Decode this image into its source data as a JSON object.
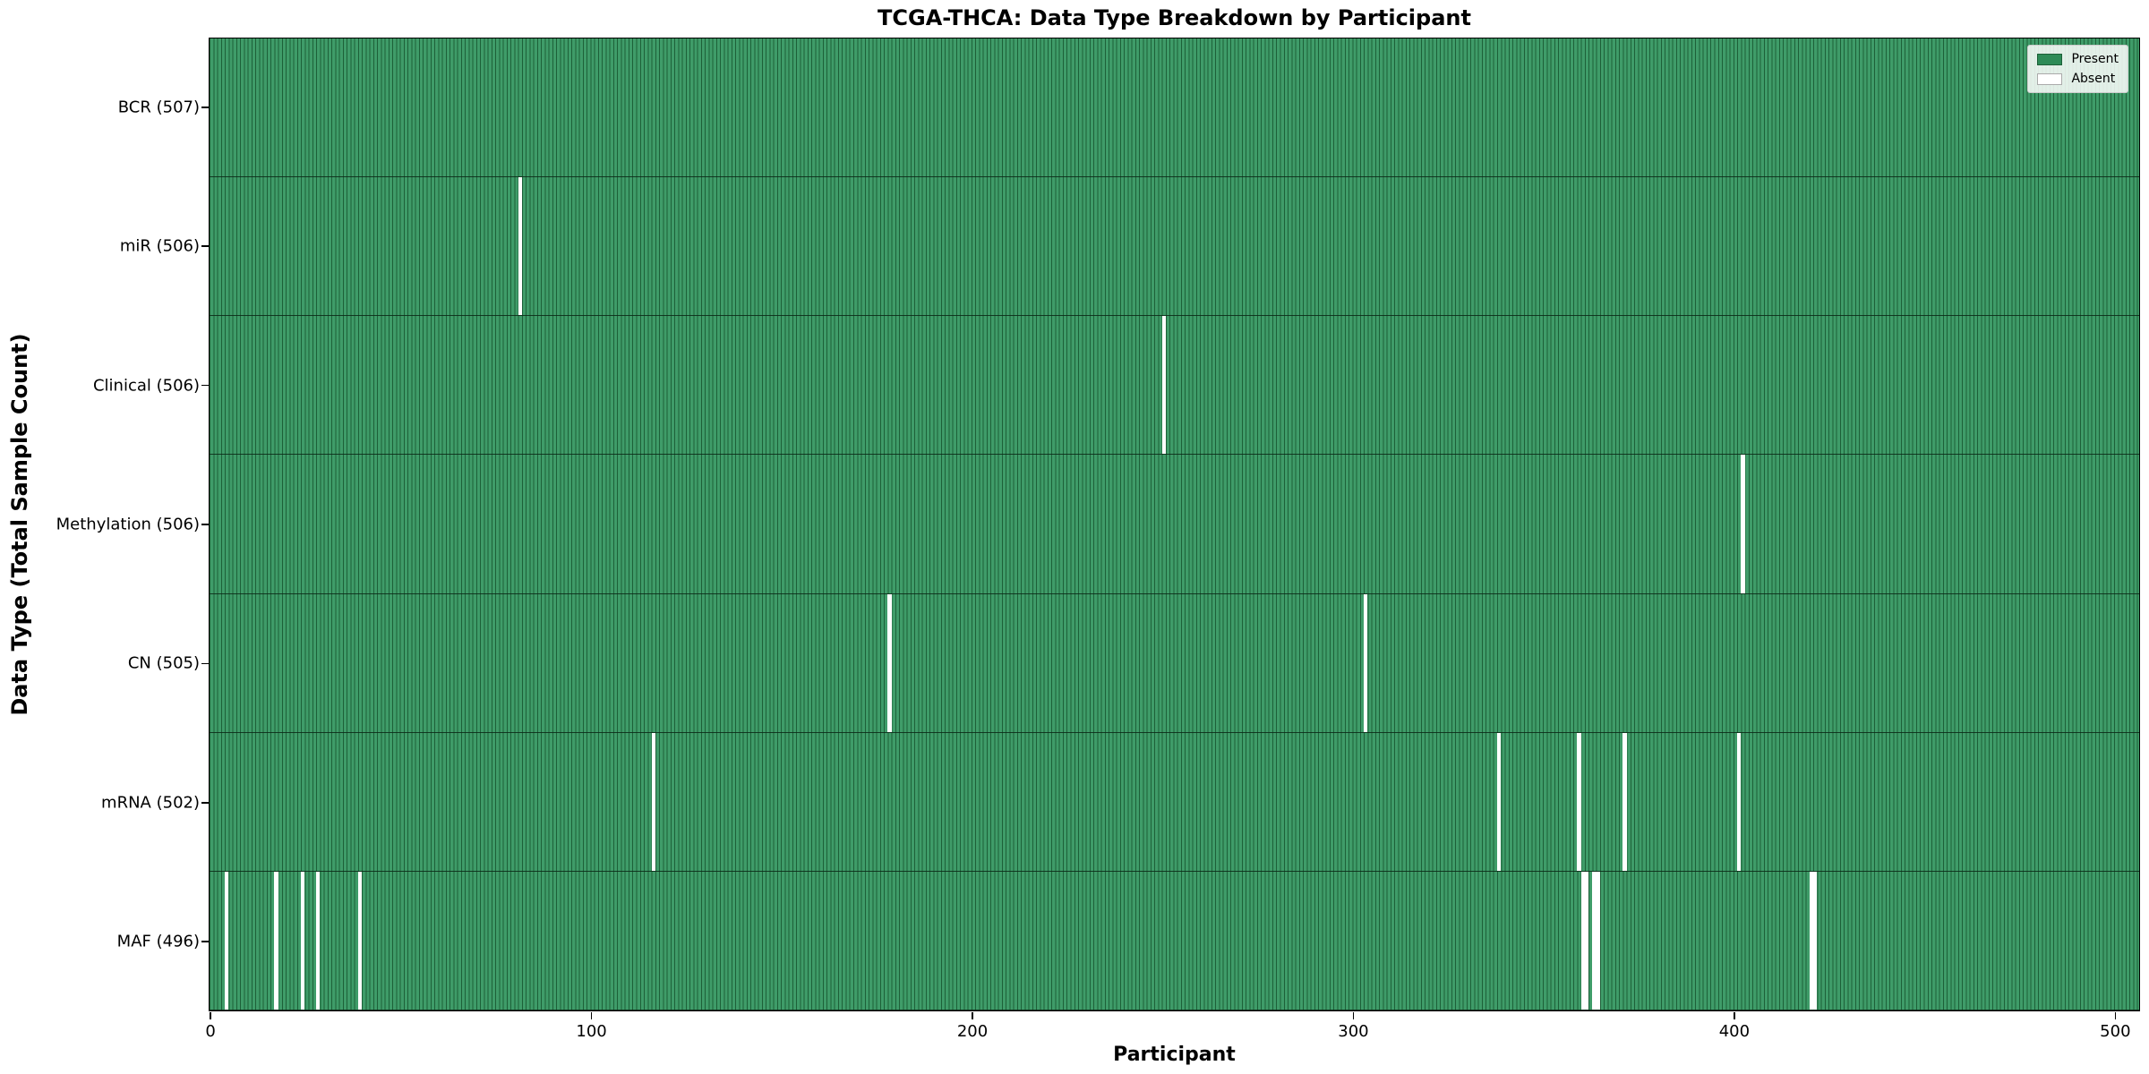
{
  "chart_data": {
    "type": "heatmap",
    "title": "TCGA-THCA: Data Type Breakdown by Participant",
    "xlabel": "Participant",
    "ylabel": "Data Type (Total Sample Count)",
    "x_ticks": [
      0,
      100,
      200,
      300,
      400,
      500
    ],
    "total_participants": 507,
    "grid": false,
    "legend_position": "upper right",
    "legend": [
      {
        "label": "Present",
        "color": "#2e8b57"
      },
      {
        "label": "Absent",
        "color": "#ffffff"
      }
    ],
    "rows": [
      {
        "label": "BCR (507)",
        "data_type": "BCR",
        "present_count": 507,
        "absent_participants": []
      },
      {
        "label": "miR (506)",
        "data_type": "miR",
        "present_count": 506,
        "absent_participants": [
          81
        ]
      },
      {
        "label": "Clinical (506)",
        "data_type": "Clinical",
        "present_count": 506,
        "absent_participants": [
          250
        ]
      },
      {
        "label": "Methylation (506)",
        "data_type": "Methylation",
        "present_count": 506,
        "absent_participants": [
          402
        ]
      },
      {
        "label": "CN (505)",
        "data_type": "CN",
        "present_count": 505,
        "absent_participants": [
          178,
          303
        ]
      },
      {
        "label": "mRNA (502)",
        "data_type": "mRNA",
        "present_count": 502,
        "absent_participants": [
          116,
          338,
          359,
          371,
          401
        ]
      },
      {
        "label": "MAF (496)",
        "data_type": "MAF",
        "present_count": 496,
        "absent_participants": [
          4,
          17,
          24,
          28,
          39,
          360,
          361,
          363,
          364,
          420,
          421
        ]
      }
    ],
    "colors": {
      "present_fill": "#3f9c69",
      "bar_edge": "#1d6038",
      "axis": "#000000"
    }
  }
}
